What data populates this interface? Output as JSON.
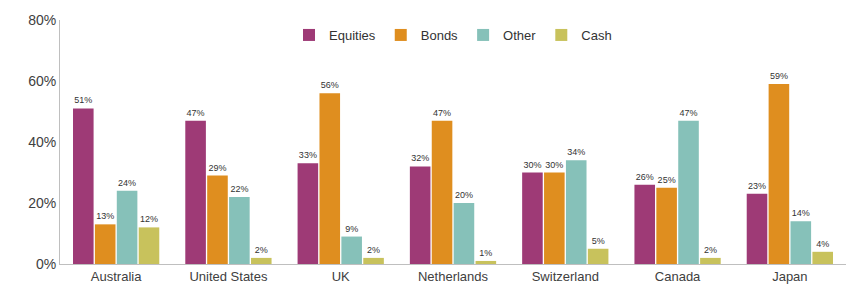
{
  "chart_data": {
    "type": "bar",
    "categories": [
      "Australia",
      "United States",
      "UK",
      "Netherlands",
      "Switzerland",
      "Canada",
      "Japan"
    ],
    "series": [
      {
        "name": "Equities",
        "color": "#9e3a76",
        "values": [
          51,
          47,
          33,
          32,
          30,
          26,
          23
        ],
        "value_labels": [
          "51%",
          "47%",
          "33%",
          "32%",
          "30%",
          "26%",
          "23%"
        ]
      },
      {
        "name": "Bonds",
        "color": "#df8e1f",
        "values": [
          13,
          29,
          56,
          47,
          30,
          25,
          59
        ],
        "value_labels": [
          "13%",
          "29%",
          "56%",
          "47%",
          "30%",
          "25%",
          "59%"
        ]
      },
      {
        "name": "Other",
        "color": "#86c1b9",
        "values": [
          24,
          22,
          9,
          20,
          34,
          47,
          14
        ],
        "value_labels": [
          "24%",
          "22%",
          "9%",
          "20%",
          "34%",
          "47%",
          "14%"
        ]
      },
      {
        "name": "Cash",
        "color": "#c8c25c",
        "values": [
          12,
          2,
          2,
          1,
          5,
          2,
          4
        ],
        "value_labels": [
          "12%",
          "2%",
          "2%",
          "1%",
          "5%",
          "2%",
          "4%"
        ]
      }
    ],
    "ylim": [
      0,
      80
    ],
    "yticks": [
      {
        "value": 0,
        "label": "0%"
      },
      {
        "value": 20,
        "label": "20%"
      },
      {
        "value": 40,
        "label": "40%"
      },
      {
        "value": 60,
        "label": "60%"
      },
      {
        "value": 80,
        "label": "80%"
      }
    ],
    "grid": false,
    "legend": "top",
    "data_labels": true
  }
}
